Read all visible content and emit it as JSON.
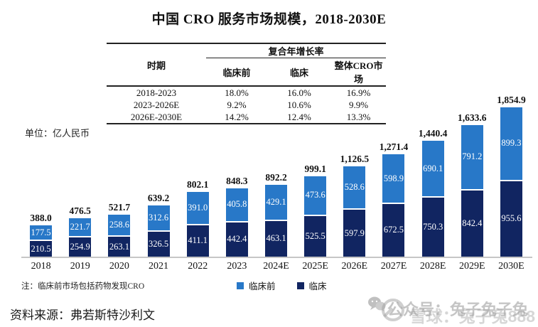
{
  "title": "中国 CRO 服务市场规模，2018-2030E",
  "unit_label": "单位：亿人民币",
  "table": {
    "period_header": "时期",
    "cagr_header": "复合年增长率",
    "col_headers": [
      "临床前",
      "临床",
      "整体CRO市场"
    ],
    "rows": [
      [
        "2018-2023",
        "18.0%",
        "16.0%",
        "16.9%"
      ],
      [
        "2023-2026E",
        "9.2%",
        "10.6%",
        "9.9%"
      ],
      [
        "2026E-2030E",
        "14.2%",
        "12.4%",
        "13.3%"
      ]
    ]
  },
  "chart_data": {
    "type": "bar",
    "stacked": true,
    "title": "中国 CRO 服务市场规模，2018-2030E",
    "xlabel": "",
    "ylabel": "亿人民币",
    "ylim": [
      0,
      1900
    ],
    "grid": false,
    "legend_position": "bottom-center",
    "categories": [
      "2018",
      "2019",
      "2020",
      "2021",
      "2022",
      "2023",
      "2024E",
      "2025E",
      "2026E",
      "2027E",
      "2028E",
      "2029E",
      "2030E"
    ],
    "series": [
      {
        "name": "临床前",
        "color": "#2878C8",
        "values": [
          177.5,
          221.7,
          258.6,
          312.6,
          391.0,
          405.8,
          429.1,
          473.6,
          528.6,
          598.9,
          690.1,
          791.2,
          899.3
        ]
      },
      {
        "name": "临床",
        "color": "#112561",
        "values": [
          210.5,
          254.9,
          263.1,
          326.5,
          411.1,
          442.4,
          463.1,
          525.5,
          597.9,
          672.5,
          750.3,
          842.4,
          955.6
        ]
      }
    ],
    "totals": [
      388.0,
      476.5,
      521.7,
      639.2,
      802.1,
      848.3,
      892.2,
      999.1,
      1126.5,
      1271.4,
      1440.4,
      1633.6,
      1854.9
    ]
  },
  "legend": [
    {
      "label": "临床前",
      "color": "#2878C8"
    },
    {
      "label": "临床",
      "color": "#112561"
    }
  ],
  "note": "注：临床前市场包括药物发现CRO",
  "source": "资料来源：弗若斯特沙利文",
  "watermark": {
    "icon": "wechat-icon",
    "text_primary": "公众号：兔子兔子兔",
    "text_secondary": "雪球：兔子兔888"
  },
  "colors": {
    "preclinical": "#2878C8",
    "clinical": "#112561",
    "axis": "#c6c6c6"
  }
}
